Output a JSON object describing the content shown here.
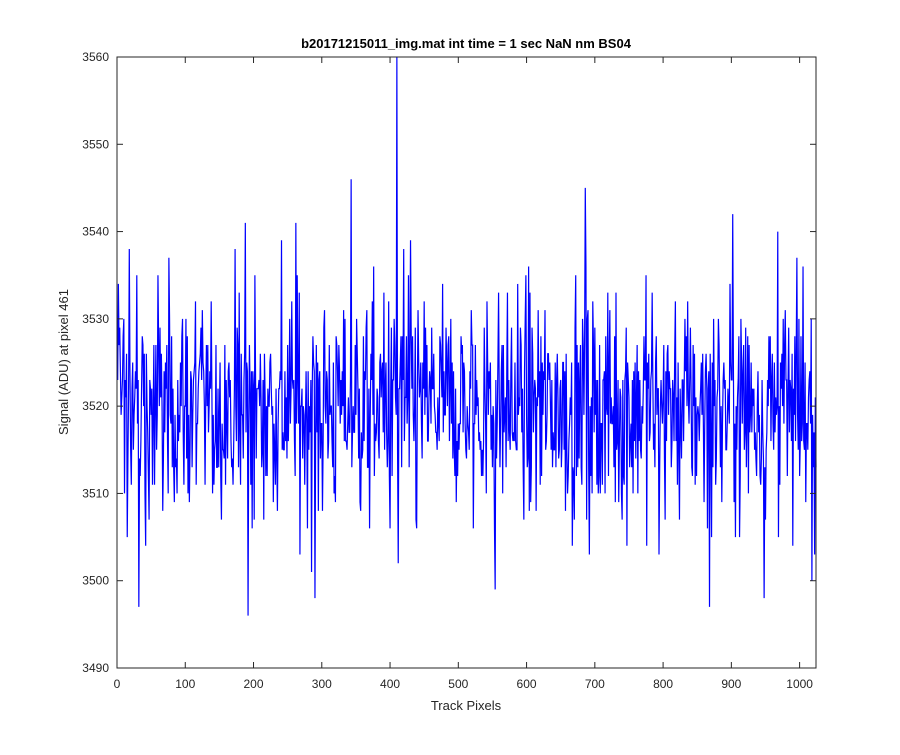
{
  "chart_data": {
    "type": "line",
    "title": "b20171215011_img.mat int time = 1 sec  NaN nm BS04",
    "xlabel": "Track Pixels",
    "ylabel": "Signal (ADU) at pixel 461",
    "xlim": [
      0,
      1024
    ],
    "ylim": [
      3490,
      3560
    ],
    "xticks": [
      0,
      100,
      200,
      300,
      400,
      500,
      600,
      700,
      800,
      900,
      1000
    ],
    "yticks": [
      3490,
      3500,
      3510,
      3520,
      3530,
      3540,
      3550,
      3560
    ],
    "grid": false,
    "legend": "none",
    "series": [
      {
        "color": "#0000ff",
        "noise": {
          "count": 1024,
          "mean": 3520,
          "std": 6.5,
          "min": 3496,
          "max": 3545,
          "x_start": 1,
          "x_step": 1
        },
        "peaks": [
          {
            "x": 18,
            "y": 3538
          },
          {
            "x": 32,
            "y": 3497
          },
          {
            "x": 42,
            "y": 3504
          },
          {
            "x": 188,
            "y": 3541
          },
          {
            "x": 192,
            "y": 3496
          },
          {
            "x": 262,
            "y": 3541
          },
          {
            "x": 290,
            "y": 3498
          },
          {
            "x": 343,
            "y": 3546
          },
          {
            "x": 410,
            "y": 3560
          },
          {
            "x": 412,
            "y": 3502
          },
          {
            "x": 420,
            "y": 3538
          },
          {
            "x": 554,
            "y": 3499
          },
          {
            "x": 686,
            "y": 3545
          },
          {
            "x": 692,
            "y": 3503
          },
          {
            "x": 794,
            "y": 3503
          },
          {
            "x": 868,
            "y": 3497
          },
          {
            "x": 902,
            "y": 3542
          },
          {
            "x": 948,
            "y": 3498
          },
          {
            "x": 968,
            "y": 3540
          },
          {
            "x": 990,
            "y": 3504
          },
          {
            "x": 1022,
            "y": 3503
          }
        ]
      }
    ]
  }
}
